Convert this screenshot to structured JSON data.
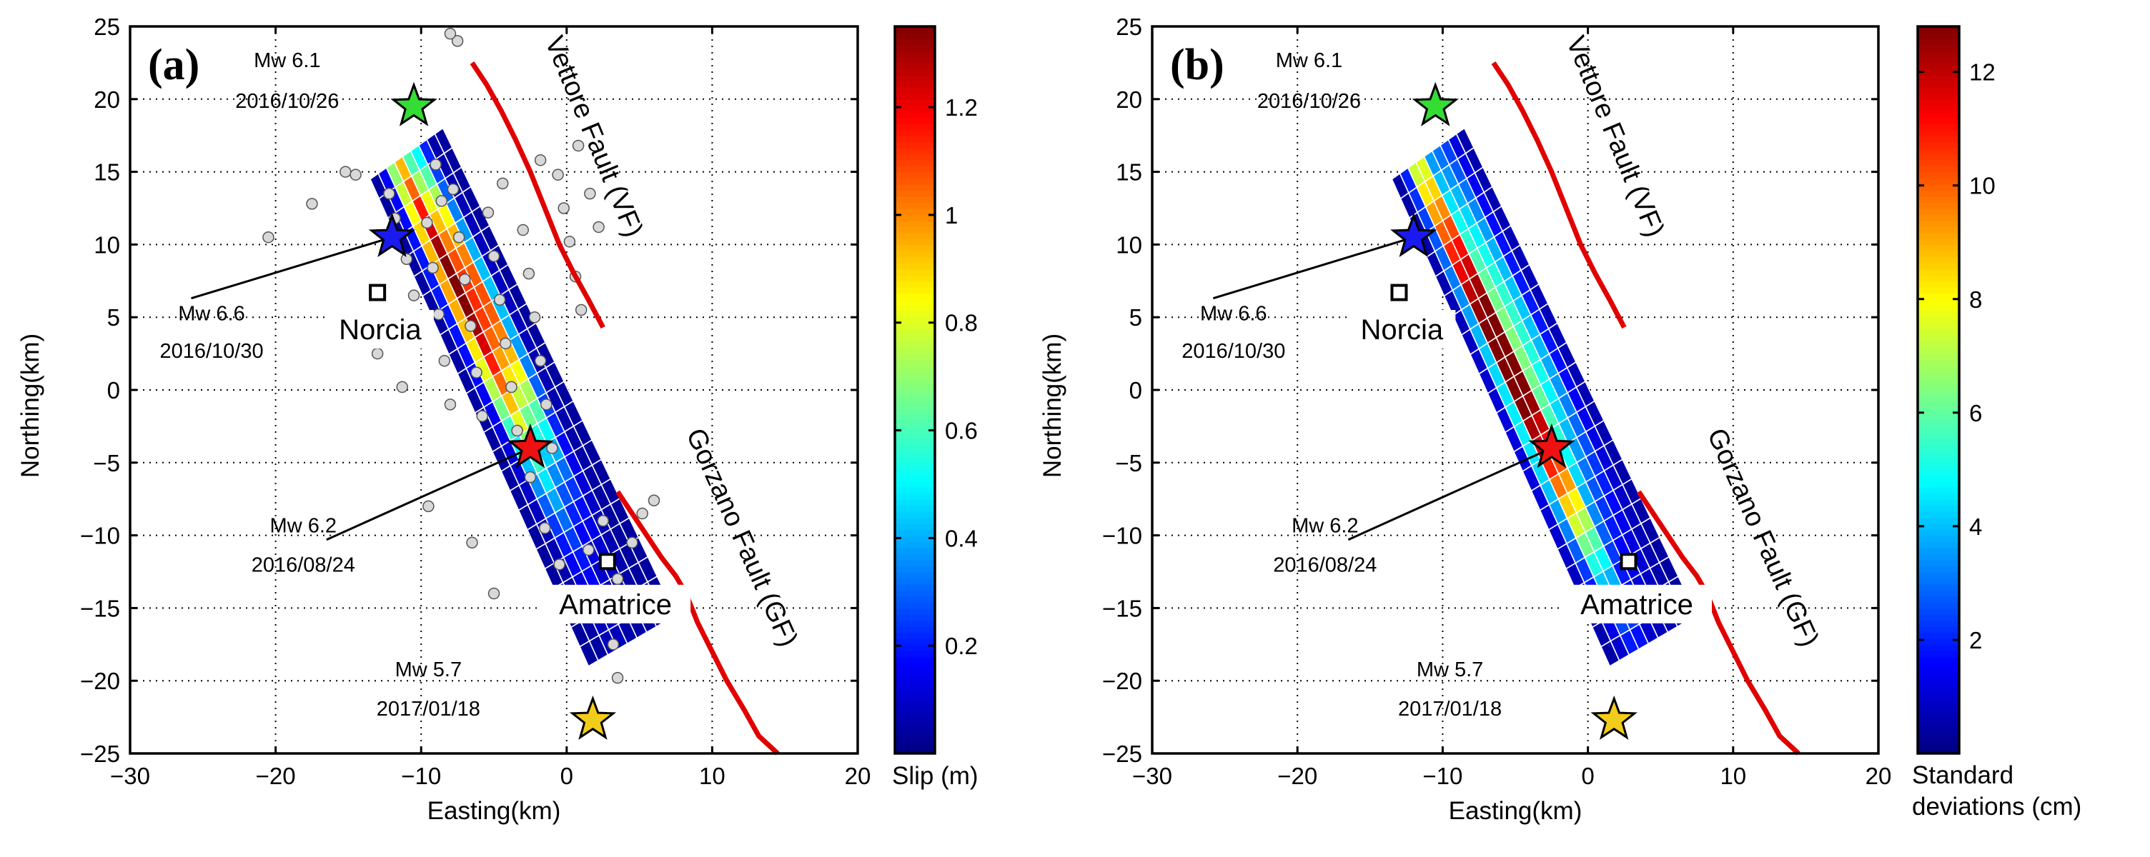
{
  "chart_data": [
    {
      "type": "heatmap",
      "panel_label": "(a)",
      "xlabel": "Easting(km)",
      "ylabel": "Northing(km)",
      "xlim": [
        -30,
        20
      ],
      "ylim": [
        -25,
        25
      ],
      "xticks": [
        -30,
        -20,
        -10,
        0,
        10,
        20
      ],
      "yticks": [
        -25,
        -20,
        -15,
        -10,
        -5,
        0,
        5,
        10,
        15,
        20,
        25
      ],
      "grid": true,
      "colorbar": {
        "label": "Slip (m)",
        "range": [
          0,
          1.35
        ],
        "ticks": [
          0.2,
          0.4,
          0.6,
          0.8,
          1,
          1.2
        ]
      },
      "fault_plane_corners": [
        [
          -13.5,
          14.5
        ],
        [
          -8.5,
          18
        ],
        [
          7.5,
          -15.5
        ],
        [
          1.5,
          -19
        ]
      ],
      "slip_patches": [
        {
          "s": 0.35,
          "t": 0.25,
          "ss": 0.09,
          "st": 0.28,
          "amp": 1.3
        },
        {
          "s": 0.58,
          "t": 0.3,
          "ss": 0.1,
          "st": 0.22,
          "amp": 1.1
        }
      ],
      "show_aftershocks": true,
      "aftershocks": [
        [
          -20.5,
          10.5
        ],
        [
          -17.5,
          12.8
        ],
        [
          -15.2,
          15
        ],
        [
          -14.5,
          14.8
        ],
        [
          -12.2,
          13.5
        ],
        [
          -11.8,
          11.8
        ],
        [
          -11,
          9
        ],
        [
          -10.5,
          6.5
        ],
        [
          -10,
          3.8
        ],
        [
          -9.6,
          11.5
        ],
        [
          -9.2,
          8.4
        ],
        [
          -8.8,
          5.2
        ],
        [
          -8.4,
          2
        ],
        [
          -8,
          -1
        ],
        [
          -7.8,
          13.8
        ],
        [
          -7.4,
          10.5
        ],
        [
          -7,
          7.6
        ],
        [
          -6.6,
          4.4
        ],
        [
          -6.2,
          1.2
        ],
        [
          -5.8,
          -1.8
        ],
        [
          -5.4,
          12.2
        ],
        [
          -5,
          9.2
        ],
        [
          -4.6,
          6.2
        ],
        [
          -4.2,
          3.2
        ],
        [
          -3.8,
          0.2
        ],
        [
          -3.4,
          -2.8
        ],
        [
          -3,
          11
        ],
        [
          -2.6,
          8
        ],
        [
          -2.2,
          5
        ],
        [
          -1.8,
          2
        ],
        [
          -1.4,
          -1
        ],
        [
          -1,
          -4
        ],
        [
          -0.6,
          14.8
        ],
        [
          -0.2,
          12.5
        ],
        [
          0.2,
          10.2
        ],
        [
          0.6,
          7.8
        ],
        [
          1,
          5.5
        ],
        [
          -2.5,
          -6
        ],
        [
          -1.5,
          -9.5
        ],
        [
          -0.5,
          -12
        ],
        [
          0.5,
          -14
        ],
        [
          1.5,
          -11
        ],
        [
          2.5,
          -9
        ],
        [
          3.5,
          -13
        ],
        [
          4.5,
          -10.5
        ],
        [
          5.2,
          -8.5
        ],
        [
          6,
          -7.6
        ],
        [
          3.2,
          -17.5
        ],
        [
          3.5,
          -19.8
        ],
        [
          -7.5,
          24
        ],
        [
          -8,
          24.5
        ],
        [
          -6.5,
          -10.5
        ],
        [
          -5,
          -14
        ],
        [
          -9.5,
          -8
        ],
        [
          -12,
          4
        ],
        [
          -13,
          2.5
        ],
        [
          -9,
          15.5
        ],
        [
          -8.6,
          13
        ],
        [
          0.8,
          16.8
        ],
        [
          1.6,
          13.5
        ],
        [
          2.2,
          11.2
        ],
        [
          -1.8,
          15.8
        ],
        [
          -4.4,
          14.2
        ],
        [
          -11.3,
          0.2
        ]
      ],
      "faults": [
        {
          "name": "Vettore Fault (VF)",
          "label": "Vettore Fault (VF)",
          "color": "#e00000",
          "path": [
            [
              -6.5,
              22.5
            ],
            [
              -5.5,
              21
            ],
            [
              -4.5,
              19.2
            ],
            [
              -3.5,
              17.2
            ],
            [
              -2.5,
              15
            ],
            [
              -1.5,
              12.5
            ],
            [
              -0.5,
              10
            ],
            [
              0.5,
              8
            ],
            [
              1.5,
              6.2
            ],
            [
              2.5,
              4.3
            ]
          ]
        },
        {
          "name": "Gorzano Fault (GF)",
          "label": "Gorzano Fault (GF)",
          "color": "#e00000",
          "path": [
            [
              3.5,
              -7
            ],
            [
              4.5,
              -8.5
            ],
            [
              5.5,
              -10
            ],
            [
              6.5,
              -11.5
            ],
            [
              7.5,
              -12.8
            ],
            [
              8.2,
              -14
            ],
            [
              9,
              -16
            ],
            [
              10,
              -18
            ],
            [
              11,
              -20
            ],
            [
              12.2,
              -22
            ],
            [
              13.2,
              -23.8
            ],
            [
              14.5,
              -25
            ]
          ]
        }
      ],
      "events": [
        {
          "label": "Mw 6.1",
          "date": "2016/10/26",
          "x": -10.5,
          "y": 19.5,
          "color": "#33dd33"
        },
        {
          "label": "Mw 6.6",
          "date": "2016/10/30",
          "x": -12,
          "y": 10.5,
          "color": "#1a1aee"
        },
        {
          "label": "Mw 6.2",
          "date": "2016/08/24",
          "x": -2.5,
          "y": -4,
          "color": "#ee1111"
        },
        {
          "label": "Mw 5.7",
          "date": "2017/01/18",
          "x": 1.8,
          "y": -22.7,
          "color": "#f2cc1a"
        }
      ],
      "towns": [
        {
          "name": "Norcia",
          "x": -13,
          "y": 6.7
        },
        {
          "name": "Amatrice",
          "x": 2.8,
          "y": -11.8
        }
      ]
    },
    {
      "type": "heatmap",
      "panel_label": "(b)",
      "xlabel": "Easting(km)",
      "ylabel": "Northing(km)",
      "xlim": [
        -30,
        20
      ],
      "ylim": [
        -25,
        25
      ],
      "xticks": [
        -30,
        -20,
        -10,
        0,
        10,
        20
      ],
      "yticks": [
        -25,
        -20,
        -15,
        -10,
        -5,
        0,
        5,
        10,
        15,
        20,
        25
      ],
      "grid": true,
      "colorbar": {
        "label_lines": [
          "Standard",
          "deviations (cm)"
        ],
        "range": [
          0,
          12.8
        ],
        "ticks": [
          2,
          4,
          6,
          8,
          10,
          12
        ]
      },
      "fault_plane_corners": [
        [
          -13.5,
          14.5
        ],
        [
          -8.5,
          18
        ],
        [
          7.5,
          -15.5
        ],
        [
          1.5,
          -19
        ]
      ],
      "slip_patches": [
        {
          "s": 0.33,
          "t": 0.3,
          "ss": 0.09,
          "st": 0.3,
          "amp": 12.8
        },
        {
          "s": 0.62,
          "t": 0.33,
          "ss": 0.14,
          "st": 0.28,
          "amp": 5
        },
        {
          "s": 0.3,
          "t": 0.6,
          "ss": 0.13,
          "st": 0.2,
          "amp": 4.5
        }
      ],
      "show_aftershocks": false,
      "aftershocks": [],
      "faults": [
        {
          "name": "Vettore Fault (VF)",
          "label": "Vettore Fault (VF)",
          "color": "#e00000",
          "path": [
            [
              -6.5,
              22.5
            ],
            [
              -5.5,
              21
            ],
            [
              -4.5,
              19.2
            ],
            [
              -3.5,
              17.2
            ],
            [
              -2.5,
              15
            ],
            [
              -1.5,
              12.5
            ],
            [
              -0.5,
              10
            ],
            [
              0.5,
              8
            ],
            [
              1.5,
              6.2
            ],
            [
              2.5,
              4.3
            ]
          ]
        },
        {
          "name": "Gorzano Fault (GF)",
          "label": "Gorzano Fault (GF)",
          "color": "#e00000",
          "path": [
            [
              3.5,
              -7
            ],
            [
              4.5,
              -8.5
            ],
            [
              5.5,
              -10
            ],
            [
              6.5,
              -11.5
            ],
            [
              7.5,
              -12.8
            ],
            [
              8.2,
              -14
            ],
            [
              9,
              -16
            ],
            [
              10,
              -18
            ],
            [
              11,
              -20
            ],
            [
              12.2,
              -22
            ],
            [
              13.2,
              -23.8
            ],
            [
              14.5,
              -25
            ]
          ]
        }
      ],
      "events": [
        {
          "label": "Mw 6.1",
          "date": "2016/10/26",
          "x": -10.5,
          "y": 19.5,
          "color": "#33dd33"
        },
        {
          "label": "Mw 6.6",
          "date": "2016/10/30",
          "x": -12,
          "y": 10.5,
          "color": "#1a1aee"
        },
        {
          "label": "Mw 6.2",
          "date": "2016/08/24",
          "x": -2.5,
          "y": -4,
          "color": "#ee1111"
        },
        {
          "label": "Mw 5.7",
          "date": "2017/01/18",
          "x": 1.8,
          "y": -22.7,
          "color": "#f2cc1a"
        }
      ],
      "towns": [
        {
          "name": "Norcia",
          "x": -13,
          "y": 6.7
        },
        {
          "name": "Amatrice",
          "x": 2.8,
          "y": -11.8
        }
      ]
    }
  ]
}
